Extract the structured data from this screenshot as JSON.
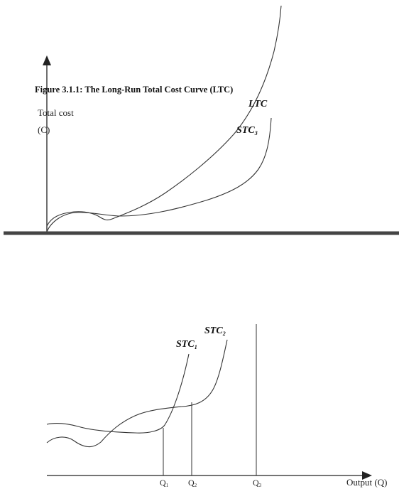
{
  "figure": {
    "title": "Figure 3.1.1: The Long-Run Total Cost Curve (LTC)",
    "y_axis_label_line1": "Total cost",
    "y_axis_label_line2": "(C)",
    "x_axis_label": "Output (Q)"
  },
  "curves": {
    "ltc": "LTC",
    "stc3_base": "STC",
    "stc3_sub": "3",
    "stc2_base": "STC",
    "stc2_sub": "2",
    "stc1_base": "STC",
    "stc1_sub": "1"
  },
  "quantities": {
    "q1_base": "Q",
    "q1_sub": "1",
    "q2_base": "Q",
    "q2_sub": "2",
    "q3_base": "Q",
    "q3_sub": "3"
  },
  "colors": {
    "line": "#222222",
    "divider": "#444444",
    "background": "#ffffff"
  }
}
